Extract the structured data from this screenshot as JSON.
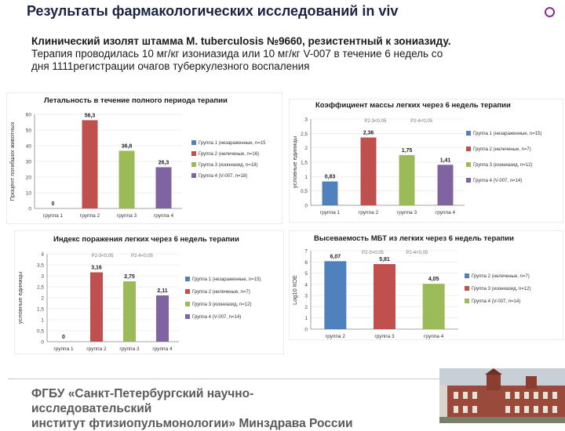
{
  "header": {
    "title": "Результаты фармакологических исследований in viv"
  },
  "intro": {
    "line1_bold": "Клинический изолят штамма M. tuberculosis №9660, резистентный к зониазиду.",
    "line2": "Терапия проводилась 10 мг/кг изониазида или 10 мг/кг V-007 в течение 6 недель со",
    "line3": "дня 1111регистрации очагов туберкулезного воспаления"
  },
  "chart_data": [
    {
      "type": "bar",
      "title": "Летальность в течение полного периода терапии",
      "ylabel": "Процент погибших животных",
      "ylim": [
        0,
        60
      ],
      "yticks": [
        "0",
        "10",
        "20",
        "30",
        "40",
        "50",
        "60"
      ],
      "categories": [
        "группа 1",
        "группа 2",
        "группа 3",
        "группа 4"
      ],
      "values": [
        0,
        56.3,
        36.8,
        26.3
      ],
      "value_labels": [
        "0",
        "56,3",
        "36,8",
        "26,3"
      ],
      "colors": [
        "#4f81bd",
        "#c0504d",
        "#9bbb59",
        "#8064a2"
      ],
      "legend": [
        "Группа 1 (незараженные, n=15",
        "Группа 2 (нелеченые, n=16)",
        "Группа 3 (изониазид, n=18)",
        "Группа 4 (V-007, n=18)"
      ],
      "legend_colors": [
        "#4f81bd",
        "#c0504d",
        "#9bbb59",
        "#8064a2"
      ],
      "annotations": []
    },
    {
      "type": "bar",
      "title": "Коэффициент массы легких через 6 недель терапии",
      "ylabel": "условные единицы",
      "ylim": [
        0,
        3
      ],
      "yticks": [
        "0",
        "0,5",
        "1",
        "1,5",
        "2",
        "2,5",
        "3"
      ],
      "categories": [
        "группа 1",
        "группа 2",
        "группа 3",
        "группа 4"
      ],
      "values": [
        0.83,
        2.36,
        1.75,
        1.41
      ],
      "value_labels": [
        "0,83",
        "2,36",
        "1,75",
        "1,41"
      ],
      "colors": [
        "#4f81bd",
        "#c0504d",
        "#9bbb59",
        "#8064a2"
      ],
      "legend": [
        "Группа 1 (незараженные, n=15)",
        "Группа 2 (нелеченые, n=7)",
        "Группа 3 (изониазид, n=12)",
        "Группа 4 (V-007, n=14)"
      ],
      "legend_colors": [
        "#4f81bd",
        "#c0504d",
        "#9bbb59",
        "#8064a2"
      ],
      "annotations": [
        "P2-3<0,05",
        "P2-4<0,05"
      ]
    },
    {
      "type": "bar",
      "title": "Индекс поражения легких через 6 недель терапии",
      "ylabel": "условные единицы",
      "ylim": [
        0,
        4
      ],
      "yticks": [
        "0",
        "0,5",
        "1",
        "1,5",
        "2",
        "2,5",
        "3",
        "3,5",
        "4"
      ],
      "categories": [
        "группа 1",
        "группа 2",
        "группа 3",
        "группа 4"
      ],
      "values": [
        0,
        3.16,
        2.75,
        2.11
      ],
      "value_labels": [
        "0",
        "3,16",
        "2,75",
        "2,11"
      ],
      "colors": [
        "#4f81bd",
        "#c0504d",
        "#9bbb59",
        "#8064a2"
      ],
      "legend": [
        "Группа 1 (незараженные, n=15)",
        "Группа 2 (нелеченые, n=7)",
        "Группа 3 (изониазид, n=12)",
        "Группа 4 (V-007, n=14)"
      ],
      "legend_colors": [
        "#4f81bd",
        "#c0504d",
        "#9bbb59",
        "#8064a2"
      ],
      "annotations": [
        "P2-3<0,05",
        "P2-4<0,05"
      ]
    },
    {
      "type": "bar",
      "title": "Высеваемость МБТ из легких через 6 недель терапии",
      "ylabel": "Log10 КОЕ",
      "ylim": [
        0,
        7
      ],
      "yticks": [
        "0",
        "1",
        "2",
        "3",
        "4",
        "5",
        "6",
        "7"
      ],
      "categories": [
        "группа 2",
        "группа 3",
        "группа 4"
      ],
      "values": [
        6.07,
        5.81,
        4.05
      ],
      "value_labels": [
        "6,07",
        "5,81",
        "4,05"
      ],
      "colors": [
        "#4f81bd",
        "#c0504d",
        "#9bbb59"
      ],
      "legend": [
        "Группа 2 (нелеченые, n=7)",
        "Группа 3 (изониазид, n=12)",
        "Группа 4 (V-007, n=14)"
      ],
      "legend_colors": [
        "#4f81bd",
        "#c0504d",
        "#9bbb59"
      ],
      "annotations": [
        "P2-3>0,05",
        "P2-4<0,05"
      ]
    }
  ],
  "footer": {
    "line1": "ФГБУ «Санкт-Петербургский научно-исследовательский",
    "line2": "институт фтизиопульмонологии» Минздрава России"
  }
}
